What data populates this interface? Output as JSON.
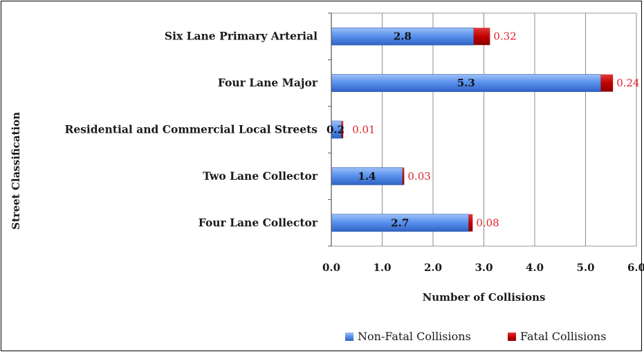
{
  "chart_data": {
    "type": "bar",
    "orientation": "horizontal",
    "stacked": true,
    "categories": [
      "Six Lane Primary Arterial",
      "Four Lane Major",
      "Residential and Commercial Local Streets",
      "Two Lane Collector",
      "Four Lane Collector"
    ],
    "series": [
      {
        "name": "Non-Fatal Collisions",
        "values": [
          2.8,
          5.3,
          0.2,
          1.4,
          2.7
        ],
        "labels": [
          "2.8",
          "5.3",
          "0.2",
          "1.4",
          "2.7"
        ],
        "color": "#4f86e6"
      },
      {
        "name": "Fatal Collisions",
        "values": [
          0.32,
          0.24,
          0.01,
          0.03,
          0.08
        ],
        "labels": [
          "0.32",
          "0.24",
          "0.01",
          "0.03",
          "0.08"
        ],
        "color": "#c00000"
      }
    ],
    "xlabel": "Number of Collisions",
    "ylabel": "Street Classification",
    "xlim": [
      0,
      6
    ],
    "xticks": [
      "0.0",
      "1.0",
      "2.0",
      "3.0",
      "4.0",
      "5.0",
      "6.0"
    ],
    "grid": true,
    "legend": "bottom-right"
  }
}
